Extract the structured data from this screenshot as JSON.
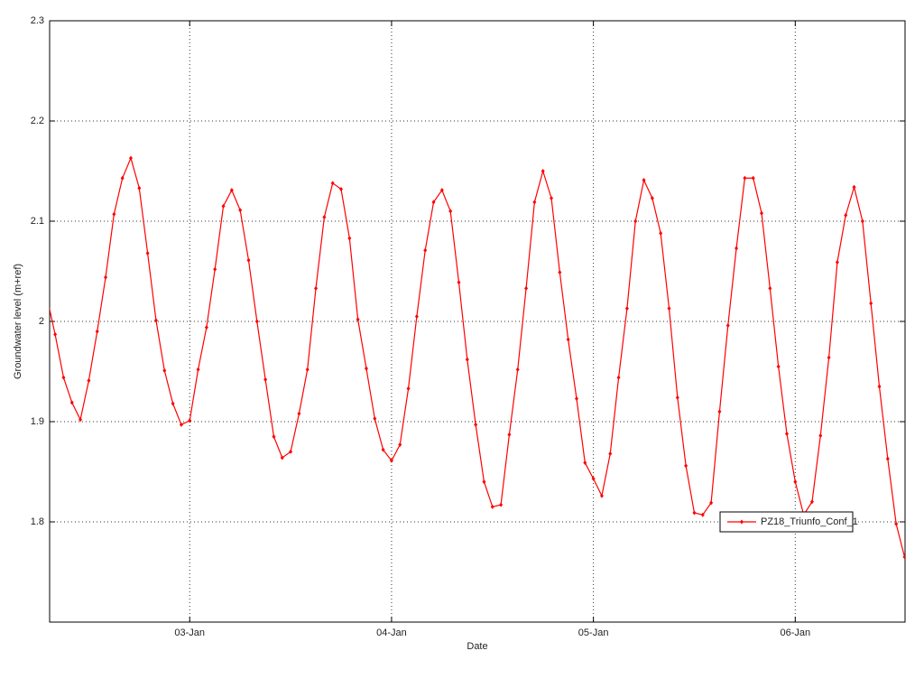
{
  "chart_data": {
    "type": "line",
    "xlabel": "Date",
    "ylabel": "Groundwater level (m+ref)",
    "x": [
      2.2917,
      2.3333,
      2.375,
      2.4167,
      2.4583,
      2.5,
      2.5417,
      2.5833,
      2.625,
      2.6667,
      2.7083,
      2.75,
      2.7917,
      2.8333,
      2.875,
      2.9167,
      2.9583,
      3,
      3.0417,
      3.0833,
      3.125,
      3.1667,
      3.2083,
      3.25,
      3.2917,
      3.3333,
      3.375,
      3.4167,
      3.4583,
      3.5,
      3.5417,
      3.5833,
      3.625,
      3.6667,
      3.7083,
      3.75,
      3.7917,
      3.8333,
      3.875,
      3.9167,
      3.9583,
      4,
      4.0417,
      4.0833,
      4.125,
      4.1667,
      4.2083,
      4.25,
      4.2917,
      4.3333,
      4.375,
      4.4167,
      4.4583,
      4.5,
      4.5417,
      4.5833,
      4.625,
      4.6667,
      4.7083,
      4.75,
      4.7917,
      4.8333,
      4.875,
      4.9167,
      4.9583,
      5,
      5.0417,
      5.0833,
      5.125,
      5.1667,
      5.2083,
      5.25,
      5.2917,
      5.3333,
      5.375,
      5.4167,
      5.4583,
      5.5,
      5.5417,
      5.5833,
      5.625,
      5.6667,
      5.7083,
      5.75,
      5.7917,
      5.8333,
      5.875,
      5.9167,
      5.9583,
      6,
      6.0417,
      6.0833,
      6.125,
      6.1667,
      6.2083,
      6.25,
      6.2917,
      6.3333,
      6.375,
      6.4167,
      6.4583,
      6.5,
      6.5417
    ],
    "series": [
      {
        "name": "PZ18_Triunfo_Conf_1",
        "color": "#ff0000",
        "values": [
          2.025,
          1.987,
          1.944,
          1.919,
          1.902,
          1.941,
          1.99,
          2.044,
          2.107,
          2.143,
          2.163,
          2.133,
          2.068,
          2.001,
          1.951,
          1.918,
          1.897,
          1.901,
          1.952,
          1.994,
          2.052,
          2.115,
          2.131,
          2.111,
          2.061,
          2,
          1.942,
          1.885,
          1.864,
          1.87,
          1.908,
          1.952,
          2.033,
          2.104,
          2.138,
          2.132,
          2.083,
          2.002,
          1.953,
          1.903,
          1.872,
          1.861,
          1.877,
          1.933,
          2.005,
          2.071,
          2.119,
          2.131,
          2.11,
          2.039,
          1.962,
          1.897,
          1.84,
          1.815,
          1.817,
          1.887,
          1.952,
          2.033,
          2.119,
          2.15,
          2.123,
          2.049,
          1.982,
          1.923,
          1.859,
          1.843,
          1.826,
          1.868,
          1.944,
          2.013,
          2.1,
          2.141,
          2.123,
          2.088,
          2.013,
          1.924,
          1.856,
          1.809,
          1.807,
          1.819,
          1.91,
          1.996,
          2.073,
          2.143,
          2.143,
          2.108,
          2.033,
          1.955,
          1.888,
          1.84,
          1.807,
          1.82,
          1.886,
          1.964,
          2.059,
          2.106,
          2.134,
          2.1,
          2.018,
          1.935,
          1.863,
          1.798,
          1.765
        ]
      }
    ],
    "xlim": [
      2.306,
      6.544
    ],
    "xticks": [
      {
        "value": 3,
        "label": "03-Jan"
      },
      {
        "value": 4,
        "label": "04-Jan"
      },
      {
        "value": 5,
        "label": "05-Jan"
      },
      {
        "value": 6,
        "label": "06-Jan"
      }
    ],
    "ylim": [
      1.7,
      2.3
    ],
    "yticks": [
      1.8,
      1.9,
      2,
      2.1,
      2.2,
      2.3
    ],
    "grid": true,
    "legend": "lower right"
  }
}
